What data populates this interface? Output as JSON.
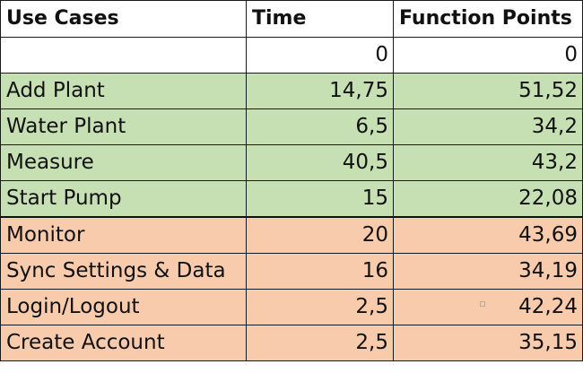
{
  "table": {
    "headers": [
      "Use Cases",
      "Time",
      "Function Points"
    ],
    "rows": [
      {
        "use_case": "",
        "time": "0",
        "function_points": "0",
        "group": "blank"
      },
      {
        "use_case": "Add Plant",
        "time": "14,75",
        "function_points": "51,52",
        "group": "green"
      },
      {
        "use_case": "Water Plant",
        "time": "6,5",
        "function_points": "34,2",
        "group": "green"
      },
      {
        "use_case": "Measure",
        "time": "40,5",
        "function_points": "43,2",
        "group": "green"
      },
      {
        "use_case": "Start Pump",
        "time": "15",
        "function_points": "22,08",
        "group": "green"
      },
      {
        "use_case": "Monitor",
        "time": "20",
        "function_points": "43,69",
        "group": "orange"
      },
      {
        "use_case": "Sync Settings & Data",
        "time": "16",
        "function_points": "34,19",
        "group": "orange"
      },
      {
        "use_case": "Login/Logout",
        "time": "2,5",
        "function_points": "42,24",
        "group": "orange"
      },
      {
        "use_case": "Create Account",
        "time": "2,5",
        "function_points": "35,15",
        "group": "orange"
      }
    ]
  },
  "colors": {
    "green_fill": "#c6e0b4",
    "orange_fill": "#f8cbad",
    "grid_line": "#1a1a1a"
  }
}
